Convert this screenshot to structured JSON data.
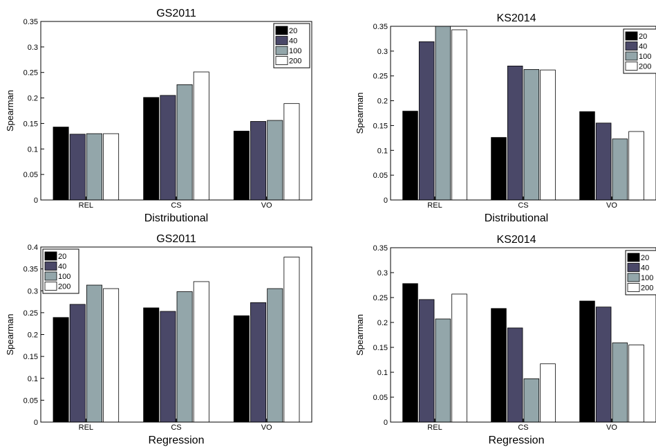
{
  "palette": {
    "20": "#000000",
    "40": "#4a4868",
    "100": "#93a6aa",
    "200": "#ffffff",
    "edge": "#000000"
  },
  "chart_data": [
    {
      "type": "bar",
      "title": "GS2011",
      "xlabel": "Distributional",
      "ylabel": "Spearman",
      "categories": [
        "REL",
        "CS",
        "VO"
      ],
      "ylim": [
        0,
        0.35
      ],
      "yticks": [
        0,
        0.05,
        0.1,
        0.15,
        0.2,
        0.25,
        0.3,
        0.35
      ],
      "ytick_labels": [
        "0",
        "0.05",
        "0.1",
        "0.15",
        "0.2",
        "0.25",
        "0.3",
        "0.35"
      ],
      "legend": "top-right",
      "grid": false,
      "series": [
        {
          "name": "20",
          "values": [
            0.143,
            0.201,
            0.135
          ]
        },
        {
          "name": "40",
          "values": [
            0.129,
            0.205,
            0.154
          ]
        },
        {
          "name": "100",
          "values": [
            0.13,
            0.226,
            0.156
          ]
        },
        {
          "name": "200",
          "values": [
            0.13,
            0.251,
            0.189
          ]
        }
      ]
    },
    {
      "type": "bar",
      "title": "KS2014",
      "xlabel": "Distributional",
      "ylabel": "Spearman",
      "categories": [
        "REL",
        "CS",
        "VO"
      ],
      "ylim": [
        0,
        0.35
      ],
      "yticks": [
        0,
        0.05,
        0.1,
        0.15,
        0.2,
        0.25,
        0.3,
        0.35
      ],
      "ytick_labels": [
        "0",
        "0.05",
        "0.1",
        "0.15",
        "0.2",
        "0.25",
        "0.3",
        "0.35"
      ],
      "legend": "top-right",
      "grid": false,
      "series": [
        {
          "name": "20",
          "values": [
            0.179,
            0.126,
            0.178
          ]
        },
        {
          "name": "40",
          "values": [
            0.319,
            0.27,
            0.155
          ]
        },
        {
          "name": "100",
          "values": [
            0.352,
            0.263,
            0.123
          ]
        },
        {
          "name": "200",
          "values": [
            0.343,
            0.262,
            0.138
          ]
        }
      ]
    },
    {
      "type": "bar",
      "title": "GS2011",
      "xlabel": "Regression",
      "ylabel": "Spearman",
      "categories": [
        "REL",
        "CS",
        "VO"
      ],
      "ylim": [
        0,
        0.4
      ],
      "yticks": [
        0,
        0.05,
        0.1,
        0.15,
        0.2,
        0.25,
        0.3,
        0.35,
        0.4
      ],
      "ytick_labels": [
        "0",
        "0.05",
        "0.1",
        "0.15",
        "0.2",
        "0.25",
        "0.3",
        "0.35",
        "0.4"
      ],
      "legend": "top-left",
      "grid": false,
      "series": [
        {
          "name": "20",
          "values": [
            0.239,
            0.261,
            0.243
          ]
        },
        {
          "name": "40",
          "values": [
            0.269,
            0.253,
            0.273
          ]
        },
        {
          "name": "100",
          "values": [
            0.313,
            0.298,
            0.305
          ]
        },
        {
          "name": "200",
          "values": [
            0.305,
            0.321,
            0.377
          ]
        }
      ]
    },
    {
      "type": "bar",
      "title": "KS2014",
      "xlabel": "Regression",
      "ylabel": "Spearman",
      "categories": [
        "REL",
        "CS",
        "VO"
      ],
      "ylim": [
        0,
        0.35
      ],
      "yticks": [
        0,
        0.05,
        0.1,
        0.15,
        0.2,
        0.25,
        0.3,
        0.35
      ],
      "ytick_labels": [
        "0",
        "0.05",
        "0.1",
        "0.15",
        "0.2",
        "0.25",
        "0.3",
        "0.35"
      ],
      "legend": "top-right",
      "grid": false,
      "series": [
        {
          "name": "20",
          "values": [
            0.278,
            0.228,
            0.243
          ]
        },
        {
          "name": "40",
          "values": [
            0.246,
            0.189,
            0.231
          ]
        },
        {
          "name": "100",
          "values": [
            0.207,
            0.087,
            0.159
          ]
        },
        {
          "name": "200",
          "values": [
            0.257,
            0.117,
            0.155
          ]
        }
      ]
    }
  ]
}
